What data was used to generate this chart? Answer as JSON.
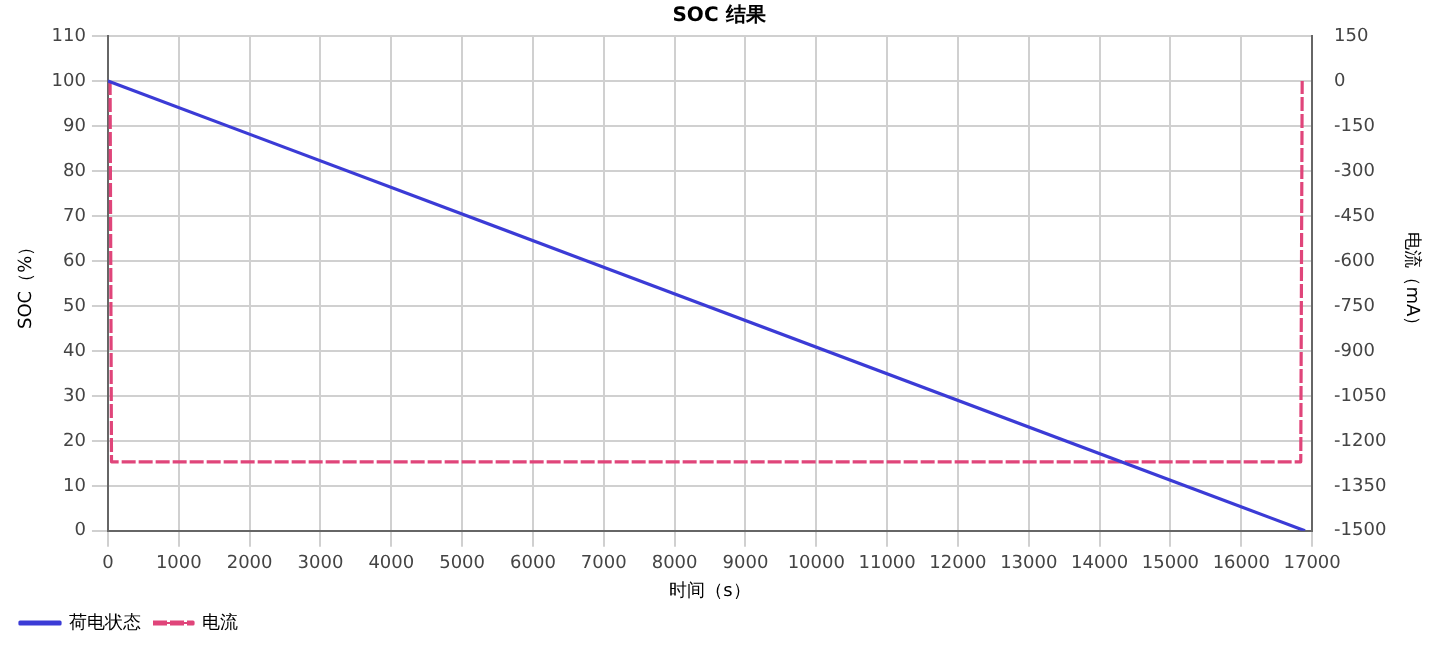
{
  "chart_data": {
    "type": "line",
    "title": "SOC 结果",
    "xlabel": "时间（s）",
    "ylabel": "SOC（%）",
    "y2label": "电流（mA）",
    "xlim": [
      0,
      17000
    ],
    "xticks": [
      0,
      1000,
      2000,
      3000,
      4000,
      5000,
      6000,
      7000,
      8000,
      9000,
      10000,
      11000,
      12000,
      13000,
      14000,
      15000,
      16000,
      17000
    ],
    "ylim": [
      0,
      110
    ],
    "yticks": [
      0,
      10,
      20,
      30,
      40,
      50,
      60,
      70,
      80,
      90,
      100,
      110
    ],
    "y2lim": [
      -1500,
      150
    ],
    "y2ticks": [
      -1500,
      -1350,
      -1200,
      -1050,
      -900,
      -750,
      -600,
      -450,
      -300,
      -150,
      0,
      150
    ],
    "grid": true,
    "legend": "bottom left",
    "series": [
      {
        "name": "荷电状态",
        "color": "#3b3bd6",
        "x": [
          0,
          16900
        ],
        "values": [
          100,
          0
        ],
        "line_style": "solid"
      },
      {
        "name": "电流",
        "color": "#e0457a",
        "axis": "y2",
        "x": [
          30,
          50,
          16840,
          16860
        ],
        "values": [
          0,
          -1270,
          -1270,
          0
        ],
        "line_style": "dashed"
      }
    ]
  }
}
